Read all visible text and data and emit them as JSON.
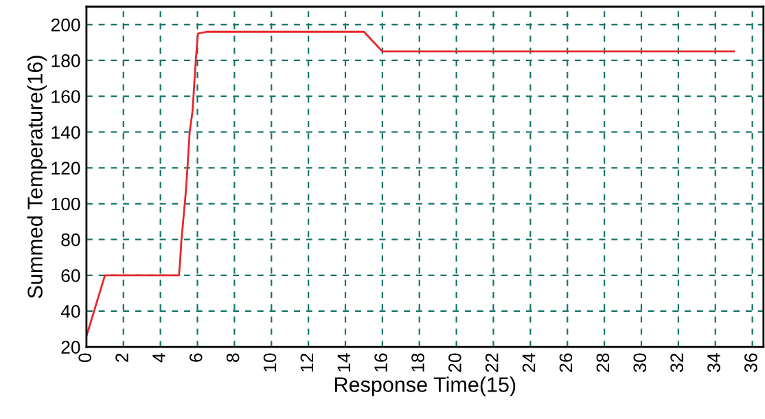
{
  "chart_data": {
    "type": "line",
    "xlabel": "Response Time(15)",
    "ylabel": "Summed Temperature(16)",
    "series": [
      {
        "color": "#e8262a",
        "x": [
          0,
          1,
          5,
          5.06,
          5.13,
          5.35,
          5.43,
          5.58,
          5.74,
          5.81,
          5.91,
          5.97,
          6.03,
          6.5,
          15,
          16,
          35
        ],
        "values": [
          26,
          60,
          60,
          67,
          79,
          104,
          115,
          140,
          152,
          164,
          180,
          188,
          195,
          196,
          196,
          185,
          185
        ]
      }
    ],
    "xlim": [
      0,
      36.6
    ],
    "xticks": [
      0,
      2,
      4,
      6,
      8,
      10,
      12,
      14,
      16,
      18,
      20,
      22,
      24,
      26,
      28,
      30,
      32,
      34,
      36
    ],
    "ylim": [
      20,
      210
    ],
    "yticks": [
      20,
      40,
      60,
      80,
      100,
      120,
      140,
      160,
      180,
      200
    ],
    "grid": true,
    "legend": false,
    "marker": "none",
    "line_style": "solid"
  }
}
